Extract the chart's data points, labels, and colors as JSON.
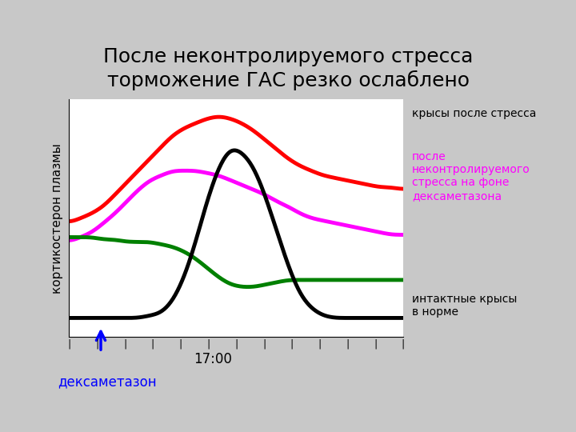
{
  "title": "После неконтролируемого стресса\nторможение ГАС резко ослаблено",
  "title_fontsize": 18,
  "background_color": "#c8c8c8",
  "plot_bg_color": "#ffffff",
  "ylabel": "кортикостерон плазмы",
  "ylabel_fontsize": 12,
  "time_label": "17:00",
  "dexametazon_label": "дексаметазон",
  "legend_red": "крысы после стресса",
  "legend_magenta": "после\nнеконтролируемого\nстресса на фоне\nдексаметазона",
  "legend_black": "интактные крысы\nв норме",
  "line_colors": [
    "#ff0000",
    "#ff00ff",
    "#008000",
    "#000000"
  ],
  "arrow_color": "#0000ff",
  "dex_label_color": "#0000ff"
}
